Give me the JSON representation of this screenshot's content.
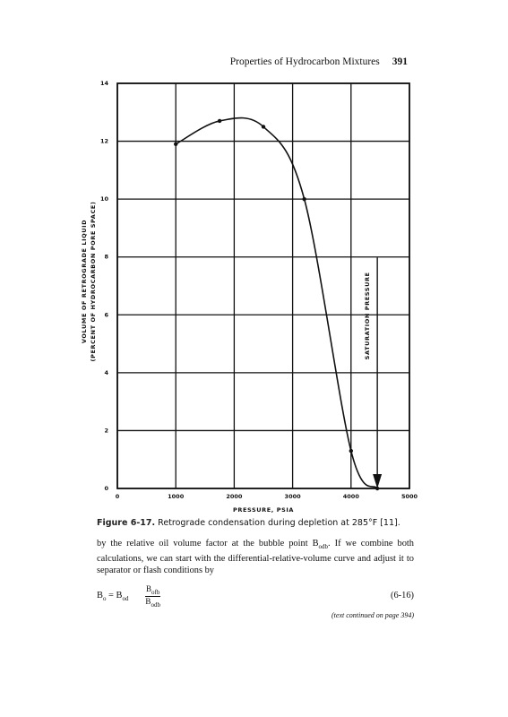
{
  "header": {
    "title": "Properties of Hydrocarbon Mixtures",
    "page": "391"
  },
  "chart_data": {
    "type": "line",
    "x": [
      1000,
      1750,
      2500,
      3200,
      4000,
      4450
    ],
    "series": [
      {
        "name": "Retrograde liquid",
        "color": "#111111",
        "values": [
          11.9,
          12.7,
          12.5,
          10,
          1.3,
          0
        ]
      }
    ],
    "xlim": [
      0,
      5000
    ],
    "xticks": [
      0,
      1000,
      2000,
      3000,
      4000,
      5000
    ],
    "ylim": [
      0,
      14
    ],
    "yticks": [
      0,
      2,
      4,
      6,
      8,
      10,
      12,
      14
    ],
    "grid": true,
    "xlabel": "PRESSURE, PSIA",
    "ylabel": [
      "VOLUME OF RETROGRADE LIQUID",
      "(PERCENT OF HYDROCARBON PORE SPACE)"
    ],
    "annotation": {
      "text": "SATURATION PRESSURE",
      "x": 4450
    }
  },
  "caption": {
    "number": "Figure 6-17.",
    "text": "Retrograde condensation during depletion at 285°F [11]."
  },
  "paragraph": {
    "before": "by the relative oil volume factor at the bubble point B",
    "sub": "odb",
    "after": ". If we combine both calculations, we can start with the differential-relative-volume curve and adjust it to separator or flash conditions by"
  },
  "equation": {
    "lhs": "B",
    "lhs_sub": "o",
    "eq": "=",
    "b1": "B",
    "b1_sub": "od",
    "num": "B",
    "num_sub": "ofb",
    "den": "B",
    "den_sub": "odb",
    "number": "(6-16)"
  },
  "continued": "(text continued on page 394)"
}
